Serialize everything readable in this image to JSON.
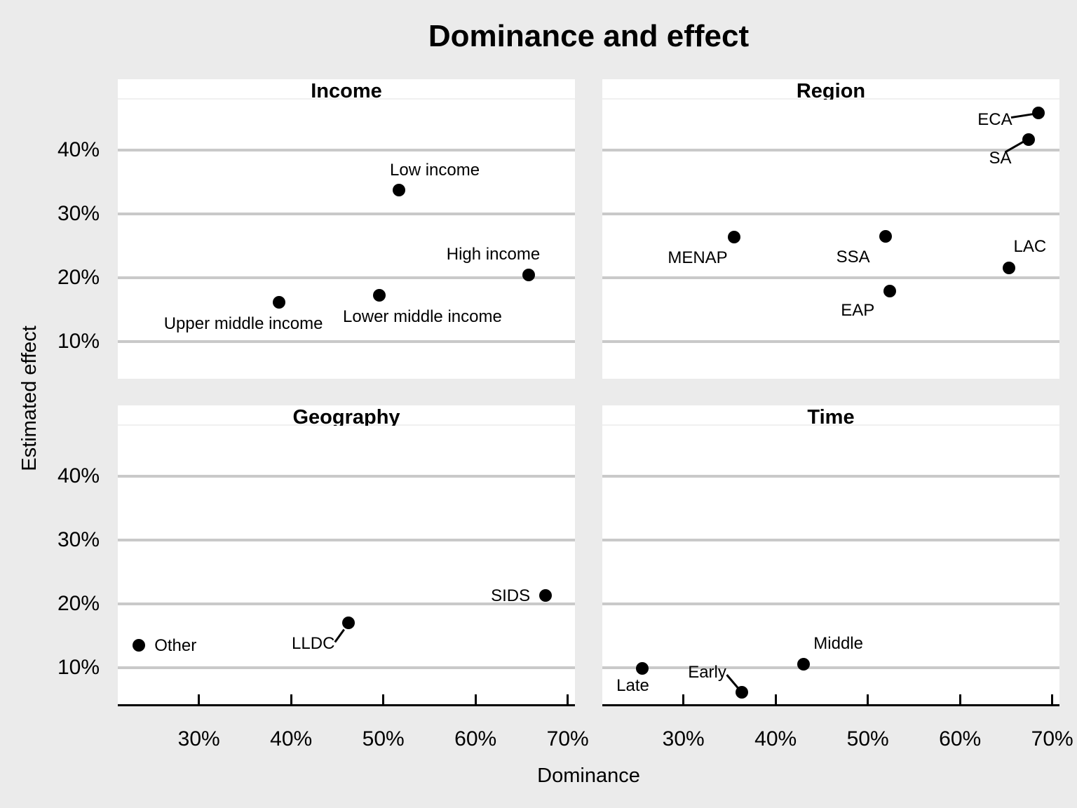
{
  "title": "Dominance and effect",
  "x_axis": {
    "title": "Dominance",
    "tick_values": [
      30,
      40,
      50,
      60,
      70
    ],
    "tick_labels": [
      "30%",
      "40%",
      "50%",
      "60%",
      "70%"
    ]
  },
  "y_axis": {
    "title": "Estimated effect",
    "tick_values": [
      40,
      30,
      20,
      10
    ],
    "tick_labels": [
      "40%",
      "30%",
      "20%",
      "10%"
    ]
  },
  "colors": {
    "figure_background": "#ebebeb",
    "panel_background": "#ffffff",
    "gridline": "#c9c9c9",
    "axis": "#000000",
    "point": "#000000",
    "text": "#000000"
  },
  "chart_data": {
    "type": "scatter",
    "xlabel": "Dominance",
    "ylabel": "Estimated effect",
    "xlim": [
      21.2,
      70.8
    ],
    "ylim": [
      4.3,
      47.8
    ],
    "x_ticks_percent": [
      30,
      40,
      50,
      60,
      70
    ],
    "y_ticks_percent": [
      10,
      20,
      30,
      40
    ],
    "grid": "horizontal-major-only",
    "legend_position": "none",
    "facets": [
      {
        "title": "Income",
        "row": 0,
        "col": 0,
        "points": [
          {
            "label": "Low income",
            "x": 51.7,
            "y": 33.7,
            "label_offset": [
              51,
              -28
            ]
          },
          {
            "label": "Upper middle income",
            "x": 38.7,
            "y": 16.2,
            "label_offset": [
              -51,
              31
            ]
          },
          {
            "label": "Lower middle income",
            "x": 49.6,
            "y": 17.3,
            "label_offset": [
              61,
              31
            ]
          },
          {
            "label": "High income",
            "x": 65.8,
            "y": 20.4,
            "label_offset": [
              -51,
              -29
            ]
          }
        ]
      },
      {
        "title": "Region",
        "row": 0,
        "col": 1,
        "points": [
          {
            "label": "ECA",
            "x": 68.5,
            "y": 45.8,
            "label_offset": [
              -62,
              10
            ],
            "leader": [
              [
                -39,
                7
              ],
              [
                -7,
                2
              ]
            ]
          },
          {
            "label": "SA",
            "x": 67.4,
            "y": 41.6,
            "label_offset": [
              -40,
              27
            ],
            "leader": [
              [
                -33,
                18
              ],
              [
                -5,
                2
              ]
            ]
          },
          {
            "label": "MENAP",
            "x": 35.5,
            "y": 26.4,
            "label_offset": [
              -52,
              30
            ]
          },
          {
            "label": "SSA",
            "x": 51.9,
            "y": 26.5,
            "label_offset": [
              -46,
              30
            ]
          },
          {
            "label": "LAC",
            "x": 65.3,
            "y": 21.5,
            "label_offset": [
              30,
              -30
            ]
          },
          {
            "label": "EAP",
            "x": 52.4,
            "y": 17.9,
            "label_offset": [
              -46,
              28
            ]
          }
        ]
      },
      {
        "title": "Geography",
        "row": 1,
        "col": 0,
        "points": [
          {
            "label": "Other",
            "x": 23.5,
            "y": 13.5,
            "label_offset": [
              52,
              1
            ]
          },
          {
            "label": "LLDC",
            "x": 46.2,
            "y": 17.0,
            "label_offset": [
              -50,
              30
            ],
            "leader": [
              [
                -19,
                27
              ],
              [
                -6,
                9
              ]
            ]
          },
          {
            "label": "SIDS",
            "x": 67.6,
            "y": 21.3,
            "label_offset": [
              -50,
              1
            ]
          }
        ]
      },
      {
        "title": "Time",
        "row": 1,
        "col": 1,
        "points": [
          {
            "label": "Late",
            "x": 25.5,
            "y": 9.9,
            "label_offset": [
              -13,
              25
            ]
          },
          {
            "label": "Early",
            "x": 36.3,
            "y": 6.2,
            "label_offset": [
              -49,
              -28
            ],
            "leader": [
              [
                -21,
                -25
              ],
              [
                -4,
                -5
              ]
            ]
          },
          {
            "label": "Middle",
            "x": 43.0,
            "y": 10.6,
            "label_offset": [
              50,
              -29
            ]
          }
        ]
      }
    ]
  }
}
